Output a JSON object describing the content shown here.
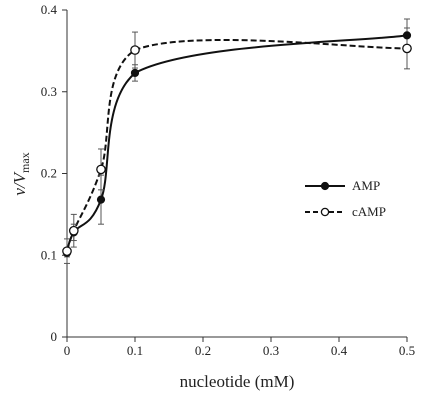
{
  "chart_data": {
    "type": "line",
    "title": "",
    "xlabel": "nucleotide (mM)",
    "ylabel": {
      "main": "v/V",
      "subscript": "max"
    },
    "xlim": [
      0,
      0.5
    ],
    "ylim": [
      0,
      0.4
    ],
    "xticks": [
      "0",
      "0.1",
      "0.2",
      "0.3",
      "0.4",
      "0.5"
    ],
    "yticks": [
      "0",
      "0.1",
      "0.2",
      "0.3",
      "0.4"
    ],
    "grid": false,
    "legend_position": "right",
    "series": [
      {
        "name": "AMP",
        "marker": "filled-circle",
        "line_style": "solid",
        "color": "#111111",
        "x": [
          0,
          0.01,
          0.05,
          0.1,
          0.5
        ],
        "y": [
          0.103,
          0.128,
          0.168,
          0.323,
          0.369
        ],
        "err": [
          0.005,
          0.01,
          0.03,
          0.01,
          0.02
        ]
      },
      {
        "name": "cAMP",
        "marker": "open-circle",
        "line_style": "dashed",
        "color": "#111111",
        "x": [
          0,
          0.01,
          0.05,
          0.1,
          0.5
        ],
        "y": [
          0.105,
          0.13,
          0.205,
          0.351,
          0.353
        ],
        "err": [
          0.015,
          0.02,
          0.025,
          0.022,
          0.025
        ]
      }
    ]
  }
}
